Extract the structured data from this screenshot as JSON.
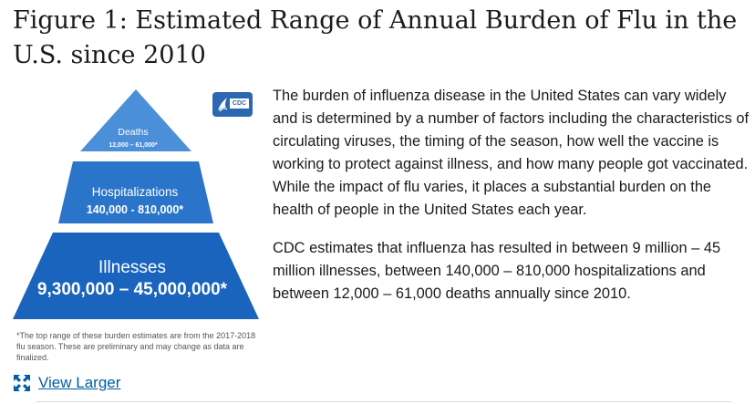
{
  "figure": {
    "title": "Figure 1: Estimated Range of Annual Burden of Flu in the U.S. since 2010"
  },
  "pyramid": {
    "tiers": [
      {
        "label": "Deaths",
        "value": "12,000 – 61,000*"
      },
      {
        "label": "Hospitalizations",
        "value": "140,000 - 810,000*"
      },
      {
        "label": "Illnesses",
        "value": "9,300,000 – 45,000,000*"
      }
    ],
    "colors": {
      "top": "#4c8fd9",
      "middle": "#2a74c9",
      "bottom": "#1a64bd",
      "text": "#ffffff"
    },
    "footnote": "*The top range of these burden estimates are from the 2017-2018 flu season. These are preliminary and may change as data are finalized."
  },
  "logo": {
    "text": "CDC",
    "icon": "cdc-eagle-icon"
  },
  "link": {
    "label": "View Larger",
    "icon": "expand-icon"
  },
  "body": {
    "paragraphs": [
      "The burden of influenza disease in the United States can vary widely and is determined by a number of factors including the characteristics of circulating viruses, the timing of the season, how well the vaccine is working to protect against illness, and how many people got vaccinated. While the impact of flu varies, it places a substantial burden on the health of people in the United States each year.",
      "CDC estimates that influenza has resulted in between 9 million – 45 million illnesses, between 140,000 – 810,000 hospitalizations and between 12,000 – 61,000 deaths annually since 2010."
    ]
  }
}
